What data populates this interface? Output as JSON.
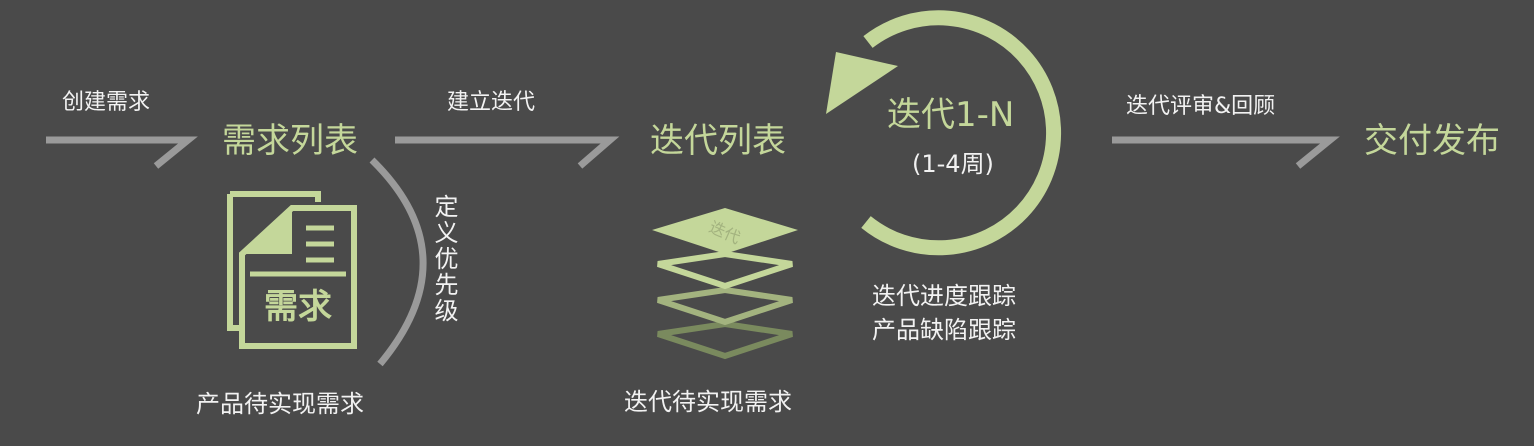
{
  "colors": {
    "background": "#4a4a4a",
    "accent_green": "#c4d79a",
    "arrow_gray": "#9a9a9a",
    "text_white": "#f2f2f2"
  },
  "flow": {
    "create_requirement": "创建需求",
    "requirement_list": "需求列表",
    "build_iteration": "建立迭代",
    "iteration_list": "迭代列表",
    "iteration_cycle": "迭代1-N",
    "iteration_duration": "(1-4周)",
    "review_label": "迭代评审&回顾",
    "delivery": "交付发布",
    "define_priority": "定义优先级",
    "track_progress": "迭代进度跟踪",
    "track_defects": "产品缺陷跟踪",
    "product_pending": "产品待实现需求",
    "iteration_pending": "迭代待实现需求"
  },
  "icons": {
    "doc_icon_text": "需求",
    "stack_icon_text": "迭代"
  }
}
